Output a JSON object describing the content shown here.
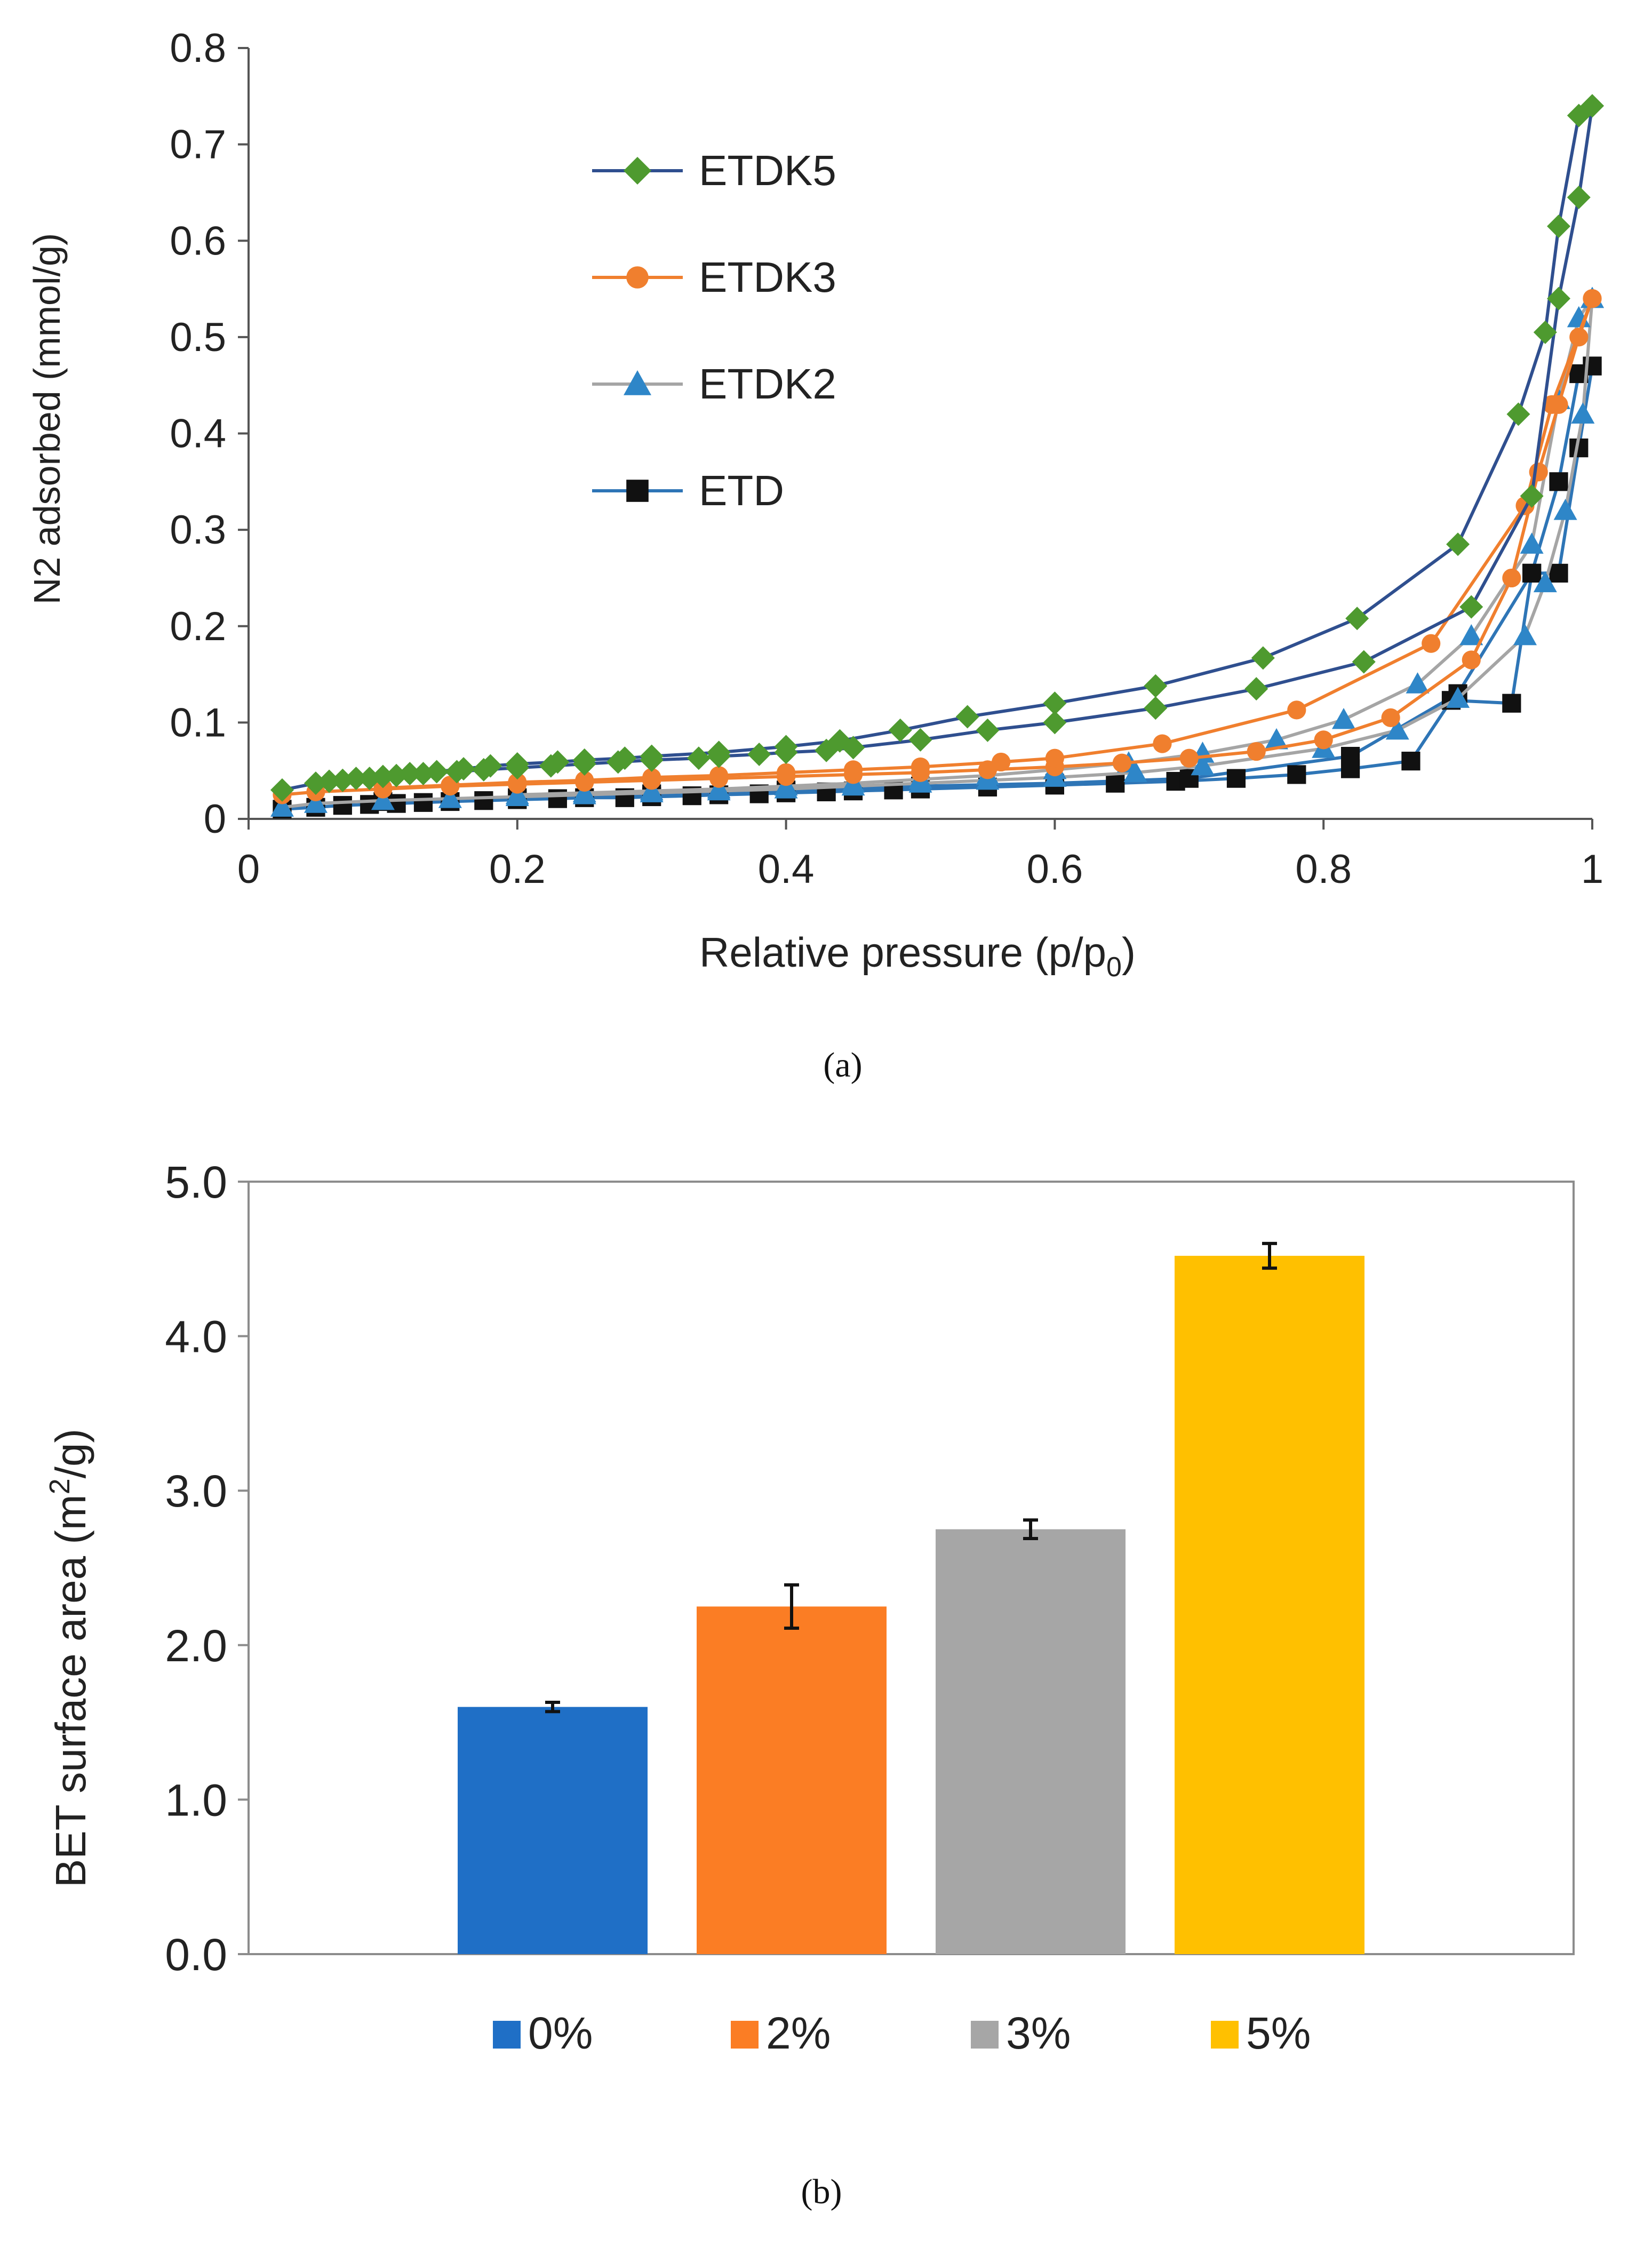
{
  "chart_data": [
    {
      "type": "scatter",
      "xlabel": "Relative pressure (p/p",
      "xlabel_sub": "0",
      "xlabel_close": ")",
      "ylabel": "N2 adsorbed (mmol/g)",
      "xlim": [
        0,
        1
      ],
      "ylim": [
        0,
        0.8
      ],
      "x_ticks": [
        "0",
        "0.2",
        "0.4",
        "0.6",
        "0.8",
        "1"
      ],
      "y_ticks": [
        "0",
        "0.1",
        "0.2",
        "0.3",
        "0.4",
        "0.5",
        "0.6",
        "0.7",
        "0.8"
      ],
      "legend_position": "top-left",
      "caption": "(a)",
      "series": [
        {
          "name": "ETDK5",
          "line_color": "#2F4F8F",
          "marker_color": "#4E9A2F",
          "marker": "diamond",
          "adsorption": {
            "x": [
              0.025,
              0.05,
              0.07,
              0.09,
              0.11,
              0.13,
              0.155,
              0.175,
              0.2,
              0.225,
              0.25,
              0.275,
              0.3,
              0.335,
              0.35,
              0.38,
              0.4,
              0.43,
              0.45,
              0.5,
              0.55,
              0.6,
              0.675,
              0.75,
              0.83,
              0.91,
              0.955,
              0.975,
              0.99,
              1.0
            ],
            "y": [
              0.03,
              0.037,
              0.04,
              0.042,
              0.045,
              0.047,
              0.049,
              0.051,
              0.053,
              0.055,
              0.057,
              0.059,
              0.061,
              0.063,
              0.065,
              0.067,
              0.069,
              0.071,
              0.074,
              0.082,
              0.092,
              0.1,
              0.115,
              0.135,
              0.163,
              0.22,
              0.335,
              0.54,
              0.645,
              0.74
            ]
          },
          "desorption": {
            "x": [
              1.0,
              0.99,
              0.975,
              0.965,
              0.945,
              0.9,
              0.825,
              0.755,
              0.675,
              0.6,
              0.535,
              0.485,
              0.44,
              0.4,
              0.35,
              0.3,
              0.28,
              0.25,
              0.23,
              0.2,
              0.18,
              0.16,
              0.14,
              0.12,
              0.1,
              0.08,
              0.06
            ],
            "y": [
              0.74,
              0.73,
              0.615,
              0.505,
              0.42,
              0.285,
              0.208,
              0.167,
              0.138,
              0.12,
              0.106,
              0.092,
              0.081,
              0.075,
              0.069,
              0.065,
              0.063,
              0.061,
              0.059,
              0.057,
              0.055,
              0.052,
              0.049,
              0.047,
              0.044,
              0.042,
              0.039
            ]
          }
        },
        {
          "name": "ETDK3",
          "line_color": "#F07F2E",
          "marker_color": "#F07F2E",
          "marker": "circle",
          "adsorption": {
            "x": [
              0.025,
              0.05,
              0.1,
              0.15,
              0.2,
              0.25,
              0.3,
              0.35,
              0.4,
              0.45,
              0.5,
              0.55,
              0.6,
              0.65,
              0.7,
              0.75,
              0.8,
              0.85,
              0.91,
              0.94,
              0.96,
              0.975,
              0.99,
              1.0
            ],
            "y": [
              0.025,
              0.028,
              0.031,
              0.034,
              0.036,
              0.038,
              0.04,
              0.042,
              0.044,
              0.046,
              0.048,
              0.051,
              0.054,
              0.058,
              0.063,
              0.07,
              0.082,
              0.105,
              0.165,
              0.25,
              0.36,
              0.43,
              0.5,
              0.54
            ]
          },
          "desorption": {
            "x": [
              1.0,
              0.97,
              0.95,
              0.88,
              0.78,
              0.68,
              0.6,
              0.56,
              0.5,
              0.45,
              0.4,
              0.35,
              0.3,
              0.25,
              0.2,
              0.15,
              0.1
            ],
            "y": [
              0.54,
              0.43,
              0.325,
              0.182,
              0.113,
              0.078,
              0.063,
              0.059,
              0.054,
              0.051,
              0.048,
              0.045,
              0.043,
              0.04,
              0.038,
              0.035,
              0.032
            ]
          }
        },
        {
          "name": "ETDK2",
          "line_color": "#A5A5A5",
          "marker_color": "#2E86C8",
          "marker": "triangle",
          "adsorption": {
            "x": [
              0.025,
              0.05,
              0.1,
              0.15,
              0.2,
              0.25,
              0.3,
              0.35,
              0.4,
              0.45,
              0.5,
              0.55,
              0.6,
              0.66,
              0.71,
              0.8,
              0.855,
              0.9,
              0.95,
              0.965,
              0.98,
              0.993,
              1.0
            ],
            "y": [
              0.012,
              0.016,
              0.019,
              0.021,
              0.023,
              0.025,
              0.027,
              0.029,
              0.031,
              0.034,
              0.037,
              0.04,
              0.043,
              0.048,
              0.055,
              0.073,
              0.092,
              0.125,
              0.19,
              0.245,
              0.32,
              0.42,
              0.54
            ]
          },
          "desorption": {
            "x": [
              1.0,
              0.99,
              0.975,
              0.955,
              0.91,
              0.87,
              0.815,
              0.765,
              0.71,
              0.655,
              0.6,
              0.55,
              0.5,
              0.45,
              0.4,
              0.35,
              0.3,
              0.25,
              0.2
            ],
            "y": [
              0.54,
              0.52,
              0.435,
              0.285,
              0.19,
              0.14,
              0.103,
              0.082,
              0.068,
              0.058,
              0.051,
              0.045,
              0.041,
              0.037,
              0.034,
              0.031,
              0.029,
              0.027,
              0.025
            ]
          }
        },
        {
          "name": "ETD",
          "line_color": "#2E75B6",
          "marker_color": "#111111",
          "marker": "square",
          "adsorption": {
            "x": [
              0.025,
              0.05,
              0.07,
              0.09,
              0.11,
              0.13,
              0.15,
              0.175,
              0.2,
              0.23,
              0.25,
              0.28,
              0.3,
              0.33,
              0.35,
              0.38,
              0.4,
              0.43,
              0.45,
              0.48,
              0.5,
              0.55,
              0.6,
              0.645,
              0.69,
              0.735,
              0.78,
              0.82,
              0.865,
              0.895,
              0.94,
              0.955,
              0.975,
              0.99,
              1.0
            ],
            "y": [
              0.01,
              0.012,
              0.014,
              0.015,
              0.016,
              0.017,
              0.018,
              0.019,
              0.02,
              0.021,
              0.022,
              0.022,
              0.023,
              0.024,
              0.025,
              0.026,
              0.027,
              0.028,
              0.029,
              0.03,
              0.031,
              0.033,
              0.035,
              0.037,
              0.039,
              0.042,
              0.046,
              0.052,
              0.06,
              0.123,
              0.12,
              0.255,
              0.255,
              0.385,
              0.47
            ]
          },
          "desorption": {
            "x": [
              1.0,
              0.99,
              0.975,
              0.955,
              0.9,
              0.82,
              0.7,
              0.6,
              0.5,
              0.4,
              0.3,
              0.2,
              0.1
            ],
            "y": [
              0.47,
              0.462,
              0.35,
              0.255,
              0.13,
              0.065,
              0.042,
              0.037,
              0.034,
              0.03,
              0.026,
              0.022,
              0.018
            ]
          }
        }
      ]
    },
    {
      "type": "bar",
      "ylabel": "BET surface area (m",
      "ylabel_sup": "2",
      "ylabel_close": "/g)",
      "ylim": [
        0,
        5
      ],
      "y_ticks": [
        "0.0",
        "1.0",
        "2.0",
        "3.0",
        "4.0",
        "5.0"
      ],
      "categories": [
        "0%",
        "2%",
        "3%",
        "5%"
      ],
      "values": [
        1.6,
        2.25,
        2.75,
        4.52
      ],
      "errors": [
        0.03,
        0.14,
        0.06,
        0.08
      ],
      "colors": [
        "#1F6FC6",
        "#FB7D24",
        "#A6A6A6",
        "#FFC000"
      ],
      "legend_position": "bottom",
      "caption": "(b)"
    }
  ]
}
